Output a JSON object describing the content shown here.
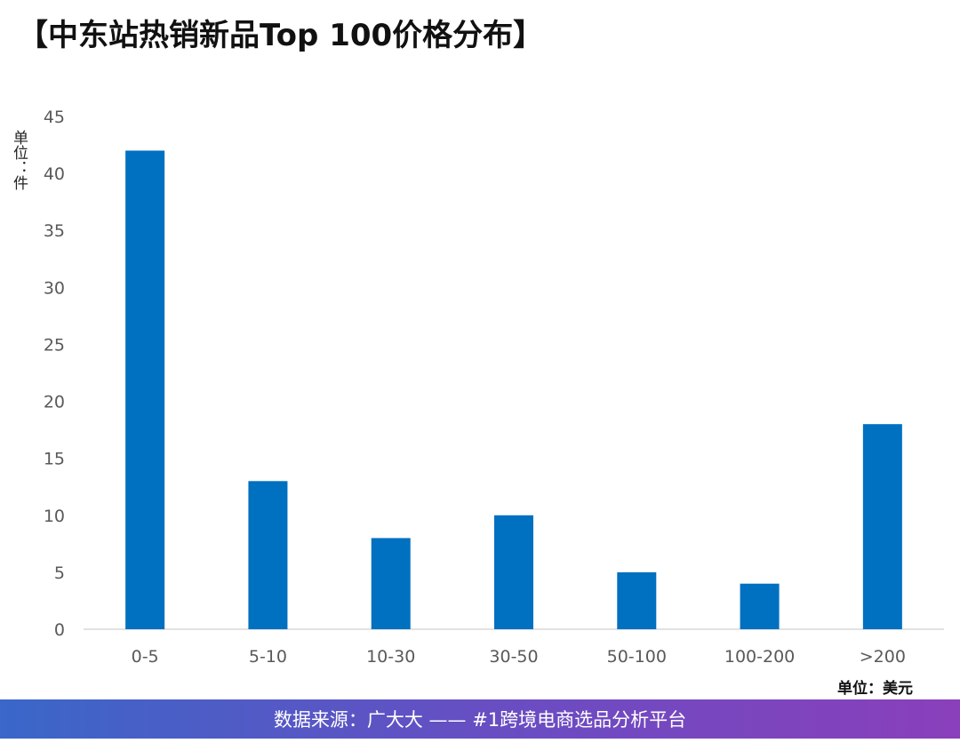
{
  "title": "【中东站热销新品Top 100价格分布】",
  "y_unit_label": "单位：件",
  "x_unit_label": "单位：美元",
  "footer": "数据来源：广大大 —— #1跨境电商选品分析平台",
  "colors": {
    "bar": "#0070C0",
    "axis": "#d9d9d9",
    "tick": "#595959"
  },
  "chart_data": {
    "type": "bar",
    "title": "【中东站热销新品Top 100价格分布】",
    "categories": [
      "0-5",
      "5-10",
      "10-30",
      "30-50",
      "50-100",
      "100-200",
      ">200"
    ],
    "values": [
      42,
      13,
      8,
      10,
      5,
      4,
      18
    ],
    "yticks": [
      0,
      5,
      10,
      15,
      20,
      25,
      30,
      35,
      40,
      45
    ],
    "ylim": [
      0,
      45
    ],
    "xlabel": "单位：美元",
    "ylabel": "单位：件",
    "grid": false
  }
}
